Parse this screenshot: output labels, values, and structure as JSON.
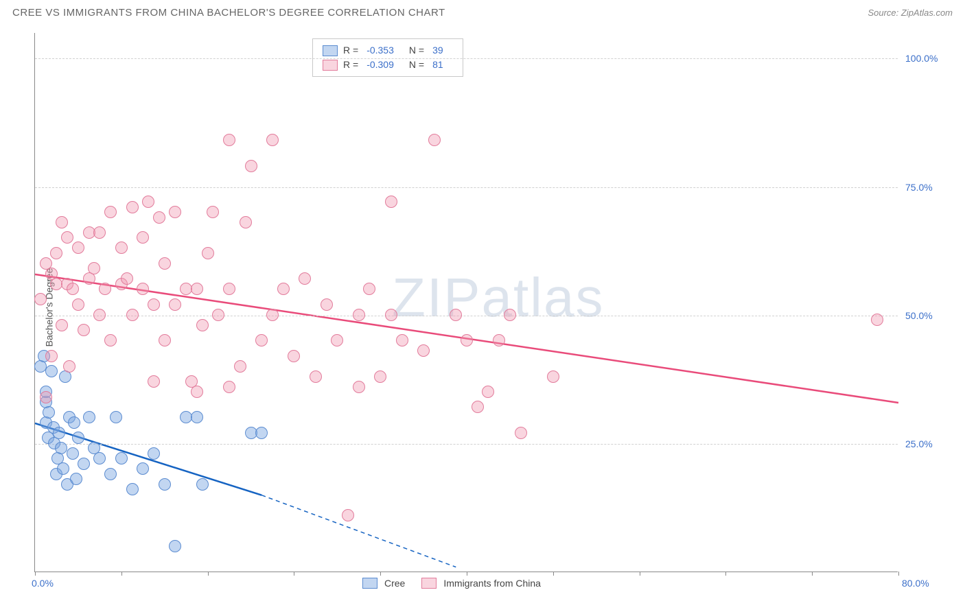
{
  "header": {
    "title": "CREE VS IMMIGRANTS FROM CHINA BACHELOR'S DEGREE CORRELATION CHART",
    "source": "Source: ZipAtlas.com"
  },
  "watermark": {
    "zip": "ZIP",
    "atlas": "atlas"
  },
  "chart": {
    "type": "scatter",
    "y_axis_label": "Bachelor's Degree",
    "xlim": [
      0,
      80
    ],
    "ylim": [
      0,
      105
    ],
    "x_min_label": "0.0%",
    "x_max_label": "80.0%",
    "y_ticks": [
      {
        "v": 25,
        "label": "25.0%"
      },
      {
        "v": 50,
        "label": "50.0%"
      },
      {
        "v": 75,
        "label": "75.0%"
      },
      {
        "v": 100,
        "label": "100.0%"
      }
    ],
    "x_tick_positions": [
      0,
      8,
      16,
      24,
      32,
      40,
      48,
      56,
      64,
      72,
      80
    ],
    "grid_color": "#d0d0d0",
    "background_color": "#ffffff",
    "axis_color": "#888888",
    "point_radius": 9,
    "series": [
      {
        "name": "Cree",
        "fill": "rgba(120,165,225,0.45)",
        "stroke": "#5a8bd0",
        "line_color": "#1563c2",
        "line_width": 2.5,
        "trend": {
          "x0": 0,
          "y0": 29,
          "x1_solid": 21,
          "y1_solid": 15,
          "x1_dash": 39,
          "y1_dash": 1
        },
        "R_label": "R =",
        "R": "-0.353",
        "N_label": "N =",
        "N": "39",
        "points": [
          [
            0.5,
            40
          ],
          [
            0.8,
            42
          ],
          [
            1,
            29
          ],
          [
            1,
            33
          ],
          [
            1,
            35
          ],
          [
            1.2,
            26
          ],
          [
            1.3,
            31
          ],
          [
            1.5,
            39
          ],
          [
            1.7,
            28
          ],
          [
            1.8,
            25
          ],
          [
            2,
            19
          ],
          [
            2.1,
            22
          ],
          [
            2.2,
            27
          ],
          [
            2.4,
            24
          ],
          [
            2.6,
            20
          ],
          [
            2.8,
            38
          ],
          [
            3,
            17
          ],
          [
            3.2,
            30
          ],
          [
            3.5,
            23
          ],
          [
            3.6,
            29
          ],
          [
            3.8,
            18
          ],
          [
            4,
            26
          ],
          [
            4.5,
            21
          ],
          [
            5,
            30
          ],
          [
            5.5,
            24
          ],
          [
            6,
            22
          ],
          [
            7,
            19
          ],
          [
            7.5,
            30
          ],
          [
            8,
            22
          ],
          [
            9,
            16
          ],
          [
            10,
            20
          ],
          [
            11,
            23
          ],
          [
            12,
            17
          ],
          [
            13,
            5
          ],
          [
            14,
            30
          ],
          [
            15,
            30
          ],
          [
            15.5,
            17
          ],
          [
            20,
            27
          ],
          [
            21,
            27
          ]
        ]
      },
      {
        "name": "Immigrants from China",
        "fill": "rgba(240,150,175,0.40)",
        "stroke": "#e27b9b",
        "line_color": "#e94b7a",
        "line_width": 2.5,
        "trend": {
          "x0": 0,
          "y0": 58,
          "x1_solid": 80,
          "y1_solid": 33,
          "x1_dash": 80,
          "y1_dash": 33
        },
        "R_label": "R =",
        "R": "-0.309",
        "N_label": "N =",
        "N": "81",
        "points": [
          [
            0.5,
            53
          ],
          [
            1,
            34
          ],
          [
            1,
            60
          ],
          [
            1.5,
            42
          ],
          [
            1.5,
            58
          ],
          [
            2,
            56
          ],
          [
            2,
            62
          ],
          [
            2.5,
            48
          ],
          [
            2.5,
            68
          ],
          [
            3,
            56
          ],
          [
            3,
            65
          ],
          [
            3.2,
            40
          ],
          [
            3.5,
            55
          ],
          [
            4,
            52
          ],
          [
            4,
            63
          ],
          [
            4.5,
            47
          ],
          [
            5,
            66
          ],
          [
            5,
            57
          ],
          [
            5.5,
            59
          ],
          [
            6,
            50
          ],
          [
            6,
            66
          ],
          [
            6.5,
            55
          ],
          [
            7,
            45
          ],
          [
            7,
            70
          ],
          [
            8,
            56
          ],
          [
            8,
            63
          ],
          [
            8.5,
            57
          ],
          [
            9,
            50
          ],
          [
            9,
            71
          ],
          [
            10,
            55
          ],
          [
            10,
            65
          ],
          [
            10.5,
            72
          ],
          [
            11,
            52
          ],
          [
            11.5,
            69
          ],
          [
            12,
            60
          ],
          [
            12,
            45
          ],
          [
            13,
            52
          ],
          [
            13,
            70
          ],
          [
            14,
            55
          ],
          [
            14.5,
            37
          ],
          [
            15,
            55
          ],
          [
            15.5,
            48
          ],
          [
            16,
            62
          ],
          [
            16.5,
            70
          ],
          [
            17,
            50
          ],
          [
            18,
            55
          ],
          [
            18,
            84
          ],
          [
            19,
            40
          ],
          [
            19.5,
            68
          ],
          [
            20,
            79
          ],
          [
            21,
            45
          ],
          [
            22,
            84
          ],
          [
            22,
            50
          ],
          [
            23,
            55
          ],
          [
            24,
            42
          ],
          [
            25,
            57
          ],
          [
            26,
            38
          ],
          [
            27,
            52
          ],
          [
            28,
            45
          ],
          [
            29,
            11
          ],
          [
            30,
            50
          ],
          [
            30,
            36
          ],
          [
            31,
            55
          ],
          [
            32,
            38
          ],
          [
            33,
            50
          ],
          [
            33,
            72
          ],
          [
            34,
            45
          ],
          [
            36,
            43
          ],
          [
            37,
            84
          ],
          [
            39,
            50
          ],
          [
            40,
            45
          ],
          [
            41,
            32
          ],
          [
            42,
            35
          ],
          [
            43,
            45
          ],
          [
            44,
            50
          ],
          [
            45,
            27
          ],
          [
            48,
            38
          ],
          [
            78,
            49
          ],
          [
            15,
            35
          ],
          [
            18,
            36
          ],
          [
            11,
            37
          ]
        ]
      }
    ],
    "legend_bottom": {
      "series1_label": "Cree",
      "series2_label": "Immigrants from China"
    }
  }
}
